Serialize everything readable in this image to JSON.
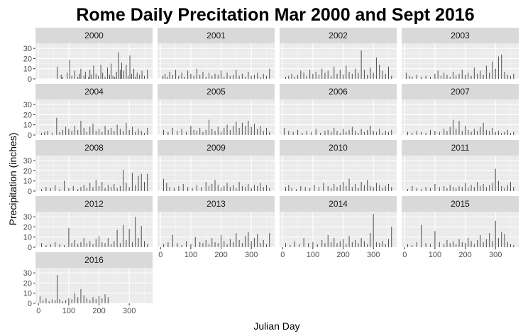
{
  "chart_data": {
    "type": "bar",
    "title": "Rome Daily Precitation Mar 2000 and Sept 2016",
    "xlabel": "Julian Day",
    "ylabel": "Precipitation (inches)",
    "xlim": [
      -10,
      377
    ],
    "ylim": [
      0,
      35
    ],
    "x_ticks": [
      0,
      100,
      200,
      300
    ],
    "y_ticks": [
      0,
      10,
      20,
      30
    ],
    "grid": true,
    "facet_layout": "wrap, 4 columns",
    "colors": {
      "bar": "#4d4d4d",
      "panel": "#ebebeb",
      "strip": "#d9d9d9",
      "grid": "#ffffff"
    },
    "series": [
      {
        "name": "2000",
        "x": [
          62,
          75,
          80,
          95,
          103,
          110,
          120,
          130,
          135,
          140,
          150,
          155,
          165,
          170,
          175,
          182,
          190,
          198,
          206,
          212,
          220,
          228,
          235,
          240,
          246,
          252,
          258,
          264,
          270,
          275,
          282,
          290,
          296,
          302,
          308,
          315,
          320,
          326,
          334,
          342,
          350,
          360
        ],
        "values": [
          12,
          4,
          2,
          6,
          19,
          3,
          8,
          2,
          5,
          10,
          3,
          7,
          2,
          9,
          4,
          13,
          5,
          3,
          14,
          6,
          2,
          11,
          4,
          15,
          3,
          2,
          7,
          26,
          9,
          16,
          8,
          14,
          3,
          23,
          5,
          10,
          2,
          6,
          4,
          8,
          3,
          9
        ]
      },
      {
        "name": "2001",
        "x": [
          8,
          15,
          22,
          30,
          40,
          50,
          60,
          70,
          80,
          90,
          100,
          110,
          120,
          130,
          140,
          150,
          160,
          170,
          180,
          190,
          200,
          210,
          220,
          230,
          240,
          250,
          260,
          270,
          280,
          290,
          300,
          310,
          320,
          330,
          340,
          350,
          360
        ],
        "values": [
          3,
          5,
          2,
          7,
          4,
          9,
          3,
          6,
          2,
          8,
          5,
          3,
          10,
          4,
          7,
          2,
          6,
          3,
          5,
          4,
          8,
          2,
          6,
          3,
          4,
          9,
          3,
          5,
          2,
          7,
          3,
          4,
          6,
          2,
          5,
          3,
          10
        ]
      },
      {
        "name": "2002",
        "x": [
          10,
          20,
          30,
          40,
          50,
          60,
          70,
          80,
          90,
          100,
          110,
          120,
          130,
          140,
          150,
          160,
          170,
          180,
          190,
          200,
          210,
          220,
          230,
          240,
          250,
          260,
          270,
          280,
          290,
          300,
          310,
          320,
          330,
          340,
          350,
          360
        ],
        "values": [
          2,
          3,
          5,
          2,
          4,
          8,
          6,
          3,
          9,
          5,
          7,
          4,
          10,
          6,
          8,
          3,
          12,
          5,
          9,
          4,
          13,
          7,
          5,
          10,
          6,
          28,
          9,
          4,
          11,
          6,
          21,
          14,
          8,
          5,
          12,
          3
        ]
      },
      {
        "name": "2003",
        "x": [
          5,
          15,
          25,
          40,
          55,
          70,
          85,
          100,
          110,
          120,
          130,
          140,
          150,
          160,
          170,
          180,
          190,
          200,
          210,
          220,
          230,
          240,
          250,
          260,
          270,
          280,
          290,
          300,
          310,
          320,
          330,
          340,
          350,
          360
        ],
        "values": [
          6,
          3,
          2,
          4,
          2,
          3,
          2,
          5,
          8,
          3,
          6,
          4,
          2,
          7,
          3,
          5,
          9,
          4,
          6,
          3,
          11,
          5,
          8,
          4,
          13,
          6,
          17,
          10,
          22,
          24,
          7,
          4,
          3,
          5
        ]
      },
      {
        "name": "2004",
        "x": [
          10,
          20,
          30,
          45,
          60,
          70,
          80,
          90,
          100,
          110,
          120,
          130,
          140,
          150,
          160,
          170,
          180,
          190,
          200,
          210,
          220,
          230,
          240,
          250,
          260,
          270,
          280,
          290,
          300,
          310,
          320,
          330,
          340,
          350,
          360
        ],
        "values": [
          2,
          3,
          4,
          2,
          17,
          3,
          5,
          8,
          6,
          4,
          9,
          5,
          14,
          7,
          3,
          8,
          11,
          4,
          6,
          3,
          9,
          5,
          7,
          4,
          10,
          6,
          4,
          12,
          5,
          8,
          3,
          6,
          4,
          2,
          7
        ]
      },
      {
        "name": "2005",
        "x": [
          10,
          25,
          40,
          55,
          70,
          85,
          100,
          110,
          120,
          130,
          140,
          150,
          160,
          170,
          180,
          190,
          200,
          210,
          220,
          230,
          240,
          250,
          260,
          270,
          280,
          290,
          300,
          310,
          320,
          330,
          340,
          350,
          360
        ],
        "values": [
          5,
          3,
          7,
          4,
          6,
          3,
          9,
          5,
          4,
          7,
          3,
          5,
          15,
          6,
          4,
          8,
          3,
          7,
          10,
          5,
          9,
          13,
          7,
          12,
          9,
          14,
          8,
          11,
          6,
          9,
          4,
          7,
          3
        ]
      },
      {
        "name": "2006",
        "x": [
          5,
          20,
          35,
          50,
          65,
          80,
          95,
          110,
          125,
          140,
          150,
          160,
          170,
          180,
          190,
          200,
          210,
          220,
          230,
          240,
          250,
          260,
          270,
          280,
          290,
          300,
          310,
          320,
          330,
          340,
          350,
          360
        ],
        "values": [
          7,
          4,
          3,
          5,
          2,
          4,
          3,
          6,
          2,
          4,
          5,
          3,
          7,
          4,
          2,
          6,
          3,
          5,
          8,
          4,
          2,
          6,
          3,
          5,
          9,
          4,
          3,
          6,
          2,
          4,
          3,
          5
        ]
      },
      {
        "name": "2007",
        "x": [
          10,
          25,
          40,
          55,
          70,
          85,
          100,
          115,
          130,
          140,
          150,
          160,
          170,
          180,
          190,
          200,
          210,
          220,
          230,
          240,
          250,
          260,
          270,
          280,
          290,
          300,
          310,
          320,
          330,
          340,
          350,
          360
        ],
        "values": [
          3,
          2,
          4,
          3,
          2,
          5,
          4,
          3,
          6,
          4,
          8,
          15,
          6,
          14,
          4,
          9,
          5,
          3,
          6,
          4,
          8,
          12,
          5,
          4,
          7,
          3,
          4,
          2,
          3,
          5,
          2,
          3
        ]
      },
      {
        "name": "2008",
        "x": [
          10,
          25,
          40,
          55,
          70,
          85,
          100,
          115,
          130,
          140,
          150,
          160,
          170,
          180,
          190,
          200,
          210,
          220,
          230,
          240,
          250,
          260,
          270,
          280,
          290,
          300,
          310,
          320,
          330,
          340,
          350,
          360
        ],
        "values": [
          2,
          4,
          3,
          6,
          2,
          10,
          3,
          5,
          2,
          4,
          6,
          3,
          8,
          4,
          11,
          5,
          9,
          3,
          6,
          4,
          7,
          3,
          5,
          21,
          8,
          4,
          18,
          6,
          15,
          17,
          9,
          17
        ]
      },
      {
        "name": "2009",
        "x": [
          10,
          20,
          30,
          45,
          60,
          75,
          90,
          105,
          120,
          135,
          150,
          160,
          170,
          180,
          190,
          200,
          210,
          220,
          230,
          240,
          250,
          260,
          270,
          280,
          290,
          300,
          310,
          320,
          330,
          340,
          350,
          360
        ],
        "values": [
          12,
          8,
          4,
          3,
          5,
          7,
          4,
          3,
          6,
          4,
          9,
          5,
          7,
          11,
          6,
          3,
          5,
          8,
          4,
          6,
          3,
          9,
          5,
          4,
          7,
          3,
          6,
          5,
          8,
          4,
          6,
          3
        ]
      },
      {
        "name": "2010",
        "x": [
          10,
          20,
          30,
          45,
          60,
          75,
          90,
          105,
          120,
          135,
          150,
          160,
          170,
          180,
          190,
          200,
          210,
          220,
          230,
          240,
          250,
          260,
          270,
          280,
          290,
          300,
          310,
          320,
          330,
          340,
          350,
          360
        ],
        "values": [
          4,
          6,
          3,
          2,
          5,
          4,
          3,
          6,
          4,
          8,
          5,
          3,
          7,
          4,
          6,
          9,
          5,
          12,
          4,
          7,
          3,
          9,
          6,
          11,
          5,
          4,
          8,
          6,
          3,
          5,
          7,
          4
        ]
      },
      {
        "name": "2011",
        "x": [
          10,
          25,
          40,
          55,
          70,
          85,
          100,
          115,
          130,
          140,
          150,
          160,
          170,
          180,
          190,
          200,
          210,
          220,
          230,
          240,
          250,
          260,
          270,
          280,
          290,
          300,
          310,
          320,
          330,
          340,
          350,
          360
        ],
        "values": [
          2,
          5,
          3,
          2,
          4,
          3,
          7,
          4,
          5,
          3,
          6,
          4,
          3,
          5,
          4,
          8,
          3,
          6,
          4,
          9,
          5,
          7,
          4,
          6,
          8,
          22,
          10,
          5,
          3,
          6,
          9,
          4
        ]
      },
      {
        "name": "2012",
        "x": [
          10,
          25,
          40,
          55,
          70,
          85,
          100,
          110,
          120,
          130,
          140,
          150,
          160,
          170,
          180,
          190,
          200,
          210,
          220,
          230,
          240,
          250,
          260,
          270,
          280,
          290,
          300,
          310,
          320,
          330,
          340,
          350,
          360
        ],
        "values": [
          4,
          2,
          3,
          5,
          3,
          2,
          19,
          4,
          7,
          3,
          5,
          9,
          4,
          6,
          3,
          8,
          11,
          5,
          4,
          9,
          3,
          6,
          17,
          4,
          22,
          7,
          18,
          5,
          30,
          9,
          21,
          6,
          3
        ]
      },
      {
        "name": "2013",
        "x": [
          10,
          25,
          40,
          55,
          70,
          85,
          100,
          115,
          130,
          140,
          150,
          160,
          170,
          180,
          190,
          200,
          210,
          220,
          230,
          240,
          250,
          260,
          270,
          280,
          290,
          300,
          310,
          320,
          330,
          340,
          350,
          360
        ],
        "values": [
          3,
          5,
          12,
          4,
          2,
          6,
          3,
          10,
          5,
          4,
          7,
          3,
          9,
          5,
          4,
          12,
          6,
          3,
          8,
          5,
          14,
          7,
          4,
          11,
          15,
          6,
          9,
          13,
          4,
          7,
          3,
          14
        ]
      },
      {
        "name": "2014",
        "x": [
          10,
          25,
          40,
          55,
          70,
          85,
          100,
          115,
          130,
          140,
          150,
          160,
          170,
          180,
          190,
          200,
          210,
          220,
          230,
          240,
          250,
          260,
          270,
          280,
          290,
          300,
          310,
          320,
          330,
          340,
          350,
          360
        ],
        "values": [
          4,
          2,
          6,
          3,
          9,
          4,
          5,
          3,
          7,
          4,
          12,
          5,
          9,
          4,
          6,
          8,
          3,
          11,
          5,
          7,
          4,
          9,
          6,
          3,
          14,
          33,
          5,
          4,
          6,
          3,
          8,
          20
        ]
      },
      {
        "name": "2015",
        "x": [
          10,
          25,
          40,
          55,
          70,
          85,
          100,
          115,
          130,
          140,
          150,
          160,
          170,
          180,
          190,
          200,
          210,
          220,
          230,
          240,
          250,
          260,
          270,
          280,
          290,
          300,
          310,
          320,
          330,
          340,
          350,
          360
        ],
        "values": [
          3,
          2,
          5,
          22,
          4,
          3,
          16,
          5,
          3,
          7,
          4,
          6,
          3,
          8,
          5,
          4,
          9,
          6,
          3,
          7,
          12,
          5,
          8,
          14,
          6,
          26,
          9,
          15,
          13,
          5,
          3,
          2
        ]
      },
      {
        "name": "2016",
        "x": [
          5,
          15,
          25,
          35,
          45,
          55,
          62,
          70,
          80,
          90,
          100,
          110,
          120,
          130,
          140,
          150,
          160,
          170,
          180,
          190,
          200,
          210,
          220,
          230
        ],
        "values": [
          7,
          3,
          5,
          2,
          4,
          3,
          28,
          4,
          2,
          3,
          5,
          4,
          10,
          6,
          14,
          8,
          5,
          3,
          6,
          4,
          7,
          5,
          9,
          6
        ]
      }
    ]
  }
}
